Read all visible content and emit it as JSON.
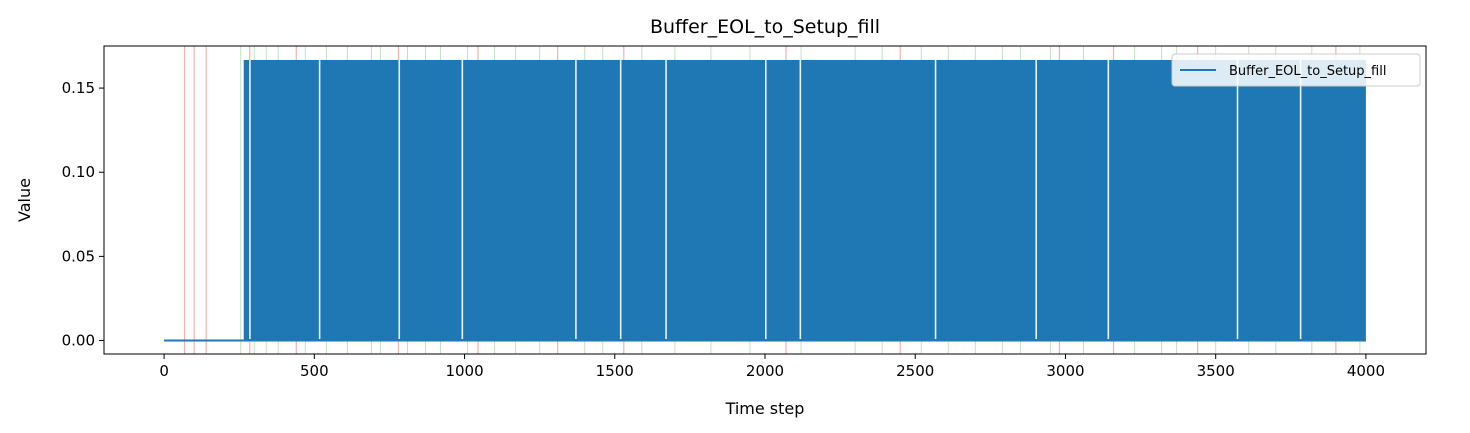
{
  "chart_data": {
    "type": "line",
    "title": "Buffer_EOL_to_Setup_fill",
    "xlabel": "Time step",
    "ylabel": "Value",
    "xlim": [
      -200,
      4200
    ],
    "ylim": [
      -0.008,
      0.175
    ],
    "xticks": [
      0,
      500,
      1000,
      1500,
      2000,
      2500,
      3000,
      3500,
      4000
    ],
    "xtick_labels": [
      "0",
      "500",
      "1000",
      "1500",
      "2000",
      "2500",
      "3000",
      "3500",
      "4000"
    ],
    "yticks": [
      0.0,
      0.05,
      0.1,
      0.15
    ],
    "ytick_labels": [
      "0.00",
      "0.05",
      "0.10",
      "0.15"
    ],
    "grid": false,
    "legend_position": "top-right",
    "series": [
      {
        "name": "Buffer_EOL_to_Setup_fill",
        "color": "#1f77b4",
        "low_value": 0.0,
        "high_value": 0.1667,
        "x_start": 0,
        "x_end": 4000,
        "zero_until": 265,
        "gaps": [
          283,
          515,
          780,
          990,
          1368,
          1517,
          1668,
          2000,
          2115,
          2565,
          2900,
          3140,
          3570,
          3780
        ],
        "note_pattern": "rapidly alternates between low_value and high_value from zero_until to x_end"
      }
    ],
    "highlight_lines": {
      "red_positions": [
        68,
        100,
        140,
        285,
        440,
        780,
        1045,
        1310,
        1530,
        2070,
        2450,
        2980,
        3160,
        3440,
        3900
      ],
      "green_positions": [
        255,
        300,
        340,
        380,
        470,
        540,
        610,
        690,
        720,
        810,
        870,
        920,
        1010,
        1100,
        1170,
        1250,
        1400,
        1460,
        1590,
        1700,
        1820,
        1950,
        2120,
        2300,
        2390,
        2520,
        2610,
        2700,
        2790,
        2850,
        2950,
        3060,
        3230,
        3320,
        3370,
        3500,
        3610,
        3700,
        3820,
        3980
      ],
      "red_color": "#e8a09a",
      "green_color": "#a8d5a8"
    }
  }
}
